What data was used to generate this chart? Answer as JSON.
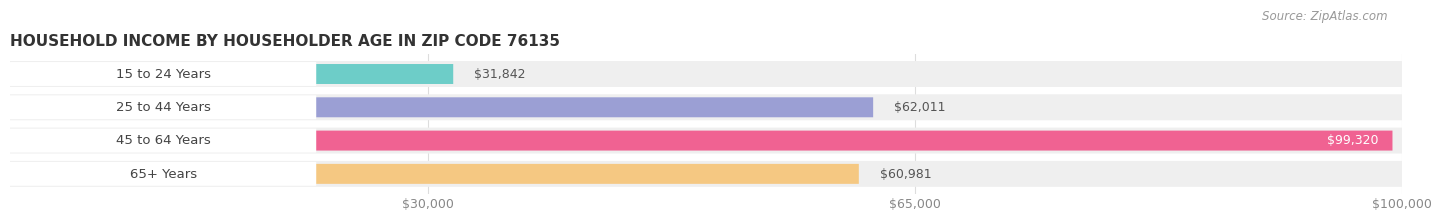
{
  "title": "HOUSEHOLD INCOME BY HOUSEHOLDER AGE IN ZIP CODE 76135",
  "source": "Source: ZipAtlas.com",
  "categories": [
    "15 to 24 Years",
    "25 to 44 Years",
    "45 to 64 Years",
    "65+ Years"
  ],
  "values": [
    31842,
    62011,
    99320,
    60981
  ],
  "bar_colors": [
    "#6dcdc8",
    "#9b9fd4",
    "#f06292",
    "#f5c882"
  ],
  "label_colors": [
    "#555555",
    "#555555",
    "#ffffff",
    "#555555"
  ],
  "value_labels": [
    "$31,842",
    "$62,011",
    "$99,320",
    "$60,981"
  ],
  "xlim": [
    0,
    100000
  ],
  "xtick_values": [
    30000,
    65000,
    100000
  ],
  "xtick_labels": [
    "$30,000",
    "$65,000",
    "$100,000"
  ],
  "background_color": "#ffffff",
  "bar_background_color": "#efefef",
  "title_fontsize": 11,
  "label_fontsize": 9.5,
  "value_fontsize": 9,
  "source_fontsize": 8.5
}
